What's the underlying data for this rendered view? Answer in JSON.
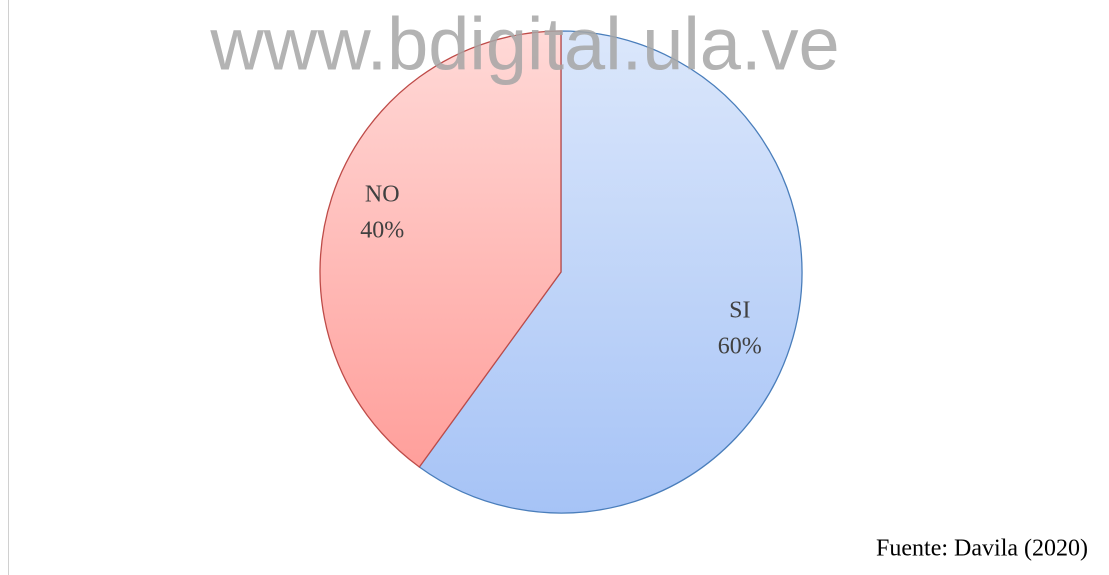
{
  "chart_data": {
    "type": "pie",
    "categories": [
      "SI",
      "NO"
    ],
    "values": [
      60,
      40
    ],
    "value_labels": [
      "60%",
      "40%"
    ],
    "colors": [
      "#a6c3f6",
      "#ff9f9b"
    ],
    "edge_colors": [
      "#4a7ebb",
      "#be4b48"
    ],
    "watermark": "www.bdigital.ula.ve",
    "source": "Fuente: Davila (2020)"
  }
}
